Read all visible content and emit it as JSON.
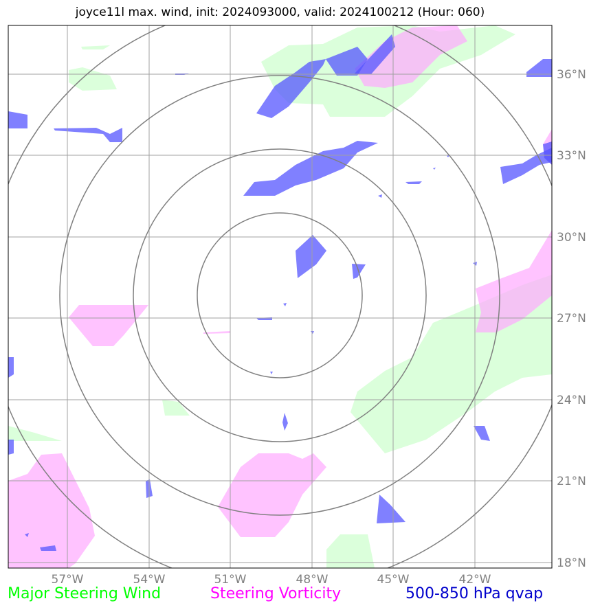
{
  "title": "joyce11l max. wind, init: 2024093000, valid: 2024100212 (Hour: 060)",
  "map": {
    "lon_labels": [
      "57°W",
      "54°W",
      "51°W",
      "48°W",
      "45°W",
      "42°W"
    ],
    "lat_labels": [
      "36°N",
      "33°N",
      "30°N",
      "27°N",
      "24°N",
      "21°N",
      "18°N"
    ],
    "colors": {
      "grid": "#a0a0a0",
      "rings": "#808080",
      "wind": "#ccffcc",
      "vorticity": "#ffaaff",
      "qvap": "#5555ff"
    }
  },
  "legend": {
    "wind": "Major Steering Wind",
    "vorticity": "Steering Vorticity",
    "qvap": "500-850 hPa qvap"
  }
}
